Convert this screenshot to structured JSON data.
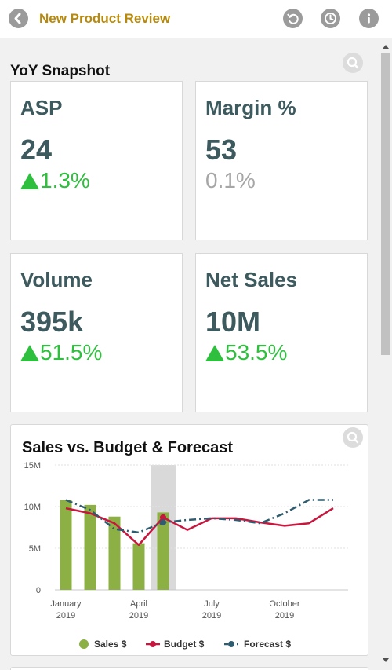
{
  "header": {
    "title": "New Product Review",
    "icons": [
      "back-arrow-icon",
      "undo-icon",
      "history-icon",
      "info-icon"
    ]
  },
  "snapshot": {
    "title": "YoY Snapshot",
    "kpis": [
      {
        "label": "ASP",
        "value": "24",
        "change": "1.3%",
        "trend": "up"
      },
      {
        "label": "Margin %",
        "value": "53",
        "change": "0.1%",
        "trend": "neutral"
      },
      {
        "label": "Volume",
        "value": "395k",
        "change": "51.5%",
        "trend": "up"
      },
      {
        "label": "Net Sales",
        "value": "10M",
        "change": "53.5%",
        "trend": "up"
      }
    ]
  },
  "colors": {
    "accent_title": "#b88a0c",
    "kpi_text": "#3d5a5f",
    "positive": "#2fbf3e",
    "neutral": "#a6a6a6",
    "sales_bar": "#8db045",
    "budget_line": "#c8173f",
    "forecast_line": "#2f5c6f",
    "highlight_band": "#d9d9d9"
  },
  "chart": {
    "title": "Sales vs. Budget & Forecast",
    "legend": [
      "Sales $",
      "Budget $",
      "Forecast $"
    ]
  },
  "chart_data": {
    "type": "bar",
    "title": "Sales vs. Budget & Forecast",
    "x": [
      "2019-01",
      "2019-02",
      "2019-03",
      "2019-04",
      "2019-05",
      "2019-06",
      "2019-07",
      "2019-08",
      "2019-09",
      "2019-10",
      "2019-11",
      "2019-12"
    ],
    "tick_labels": [
      {
        "month": "2019-01",
        "line1": "January",
        "line2": "2019"
      },
      {
        "month": "2019-04",
        "line1": "April",
        "line2": "2019"
      },
      {
        "month": "2019-07",
        "line1": "July",
        "line2": "2019"
      },
      {
        "month": "2019-10",
        "line1": "October",
        "line2": "2019"
      }
    ],
    "y_ticks": [
      {
        "v": 0,
        "label": "0"
      },
      {
        "v": 5,
        "label": "5M"
      },
      {
        "v": 10,
        "label": "10M"
      },
      {
        "v": 15,
        "label": "15M"
      }
    ],
    "ylim": [
      0,
      15
    ],
    "y_unit": "M",
    "highlight_month": "2019-05",
    "series": [
      {
        "name": "Sales $",
        "kind": "bar",
        "values": [
          10.8,
          10.2,
          8.8,
          5.6,
          9.3,
          null,
          null,
          null,
          null,
          null,
          null,
          null
        ]
      },
      {
        "name": "Budget $",
        "kind": "line",
        "values": [
          9.8,
          9.2,
          8.0,
          5.4,
          8.7,
          7.2,
          8.6,
          8.6,
          8.1,
          7.7,
          8.0,
          9.8
        ]
      },
      {
        "name": "Forecast $",
        "kind": "dashed-line",
        "values": [
          10.8,
          9.6,
          7.3,
          6.9,
          8.1,
          8.4,
          8.6,
          8.4,
          8.0,
          9.2,
          10.8,
          10.8
        ]
      }
    ],
    "legend_position": "bottom",
    "grid": true
  }
}
